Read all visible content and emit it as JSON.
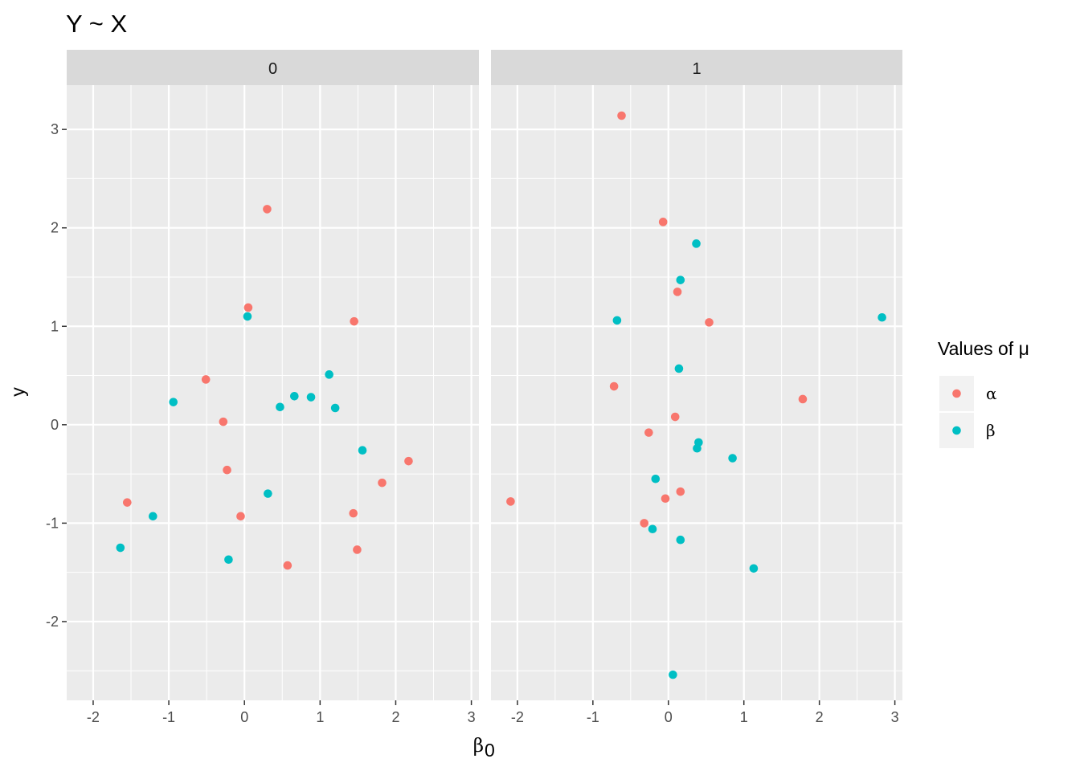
{
  "chart_data": {
    "type": "scatter",
    "title": "Y ~ X",
    "xlabel_symbol": "β",
    "xlabel_subscript": "0",
    "ylabel": "y",
    "xlim": [
      -2.35,
      3.1
    ],
    "ylim": [
      -2.8,
      3.45
    ],
    "x_ticks": [
      "-2",
      "-1",
      "0",
      "1",
      "2",
      "3"
    ],
    "x_tick_values": [
      -2,
      -1,
      0,
      1,
      2,
      3
    ],
    "y_ticks": [
      "3",
      "2",
      "1",
      "0",
      "-1",
      "-2"
    ],
    "y_tick_values": [
      3,
      2,
      1,
      0,
      -1,
      -2
    ],
    "grid": true,
    "legend": {
      "title": "Values of μ",
      "placement": "right",
      "entries": [
        {
          "label": "α",
          "color": "#F8766D"
        },
        {
          "label": "β",
          "color": "#00BFC4"
        }
      ]
    },
    "panels": [
      {
        "strip": "0",
        "series": [
          {
            "name": "α",
            "points": [
              [
                0.3,
                2.19
              ],
              [
                0.05,
                1.19
              ],
              [
                1.45,
                1.05
              ],
              [
                -0.51,
                0.46
              ],
              [
                -0.28,
                0.03
              ],
              [
                -0.23,
                -0.46
              ],
              [
                -1.55,
                -0.79
              ],
              [
                -0.05,
                -0.93
              ],
              [
                1.44,
                -0.9
              ],
              [
                1.82,
                -0.59
              ],
              [
                2.17,
                -0.37
              ],
              [
                1.49,
                -1.27
              ],
              [
                0.57,
                -1.43
              ]
            ]
          },
          {
            "name": "β",
            "points": [
              [
                0.04,
                1.1
              ],
              [
                1.12,
                0.51
              ],
              [
                0.66,
                0.29
              ],
              [
                0.88,
                0.28
              ],
              [
                0.47,
                0.18
              ],
              [
                1.2,
                0.17
              ],
              [
                -0.94,
                0.23
              ],
              [
                1.56,
                -0.26
              ],
              [
                0.31,
                -0.7
              ],
              [
                -1.21,
                -0.93
              ],
              [
                -1.64,
                -1.25
              ],
              [
                -0.21,
                -1.37
              ]
            ]
          }
        ]
      },
      {
        "strip": "1",
        "series": [
          {
            "name": "α",
            "points": [
              [
                -0.62,
                3.14
              ],
              [
                -0.07,
                2.06
              ],
              [
                0.12,
                1.35
              ],
              [
                0.54,
                1.04
              ],
              [
                -0.72,
                0.39
              ],
              [
                1.78,
                0.26
              ],
              [
                0.09,
                0.08
              ],
              [
                -0.26,
                -0.08
              ],
              [
                0.16,
                -0.68
              ],
              [
                -0.04,
                -0.75
              ],
              [
                -0.32,
                -1.0
              ],
              [
                -2.09,
                -0.78
              ]
            ]
          },
          {
            "name": "β",
            "points": [
              [
                0.37,
                1.84
              ],
              [
                0.16,
                1.47
              ],
              [
                -0.68,
                1.06
              ],
              [
                2.83,
                1.09
              ],
              [
                0.14,
                0.57
              ],
              [
                0.4,
                -0.18
              ],
              [
                0.38,
                -0.24
              ],
              [
                0.85,
                -0.34
              ],
              [
                -0.17,
                -0.55
              ],
              [
                -0.21,
                -1.06
              ],
              [
                0.16,
                -1.17
              ],
              [
                1.13,
                -1.46
              ],
              [
                0.06,
                -2.54
              ]
            ]
          }
        ]
      }
    ]
  }
}
